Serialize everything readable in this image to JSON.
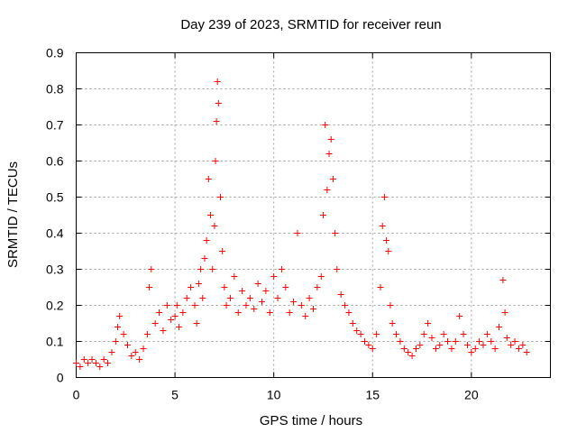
{
  "chart_data": {
    "type": "scatter",
    "title": "Day 239 of 2023, SRMTID for receiver reun",
    "xlabel": "GPS time / hours",
    "ylabel": "SRMTID / TECUs",
    "xlim": [
      0,
      24
    ],
    "ylim": [
      0,
      0.9
    ],
    "xticks": [
      0,
      5,
      10,
      15,
      20
    ],
    "xtick_labels": [
      "0",
      "5",
      "10",
      "15",
      "20"
    ],
    "yticks": [
      0,
      0.1,
      0.2,
      0.3,
      0.4,
      0.5,
      0.6,
      0.7,
      0.8,
      0.9
    ],
    "ytick_labels": [
      "0",
      "0.1",
      "0.2",
      "0.3",
      "0.4",
      "0.5",
      "0.6",
      "0.7",
      "0.8",
      "0.9"
    ],
    "grid": true,
    "marker": "+",
    "color": "#ff0000",
    "series": [
      {
        "name": "SRMTID",
        "points": [
          [
            0.0,
            0.04
          ],
          [
            0.2,
            0.03
          ],
          [
            0.4,
            0.05
          ],
          [
            0.6,
            0.04
          ],
          [
            0.8,
            0.05
          ],
          [
            1.0,
            0.04
          ],
          [
            1.2,
            0.03
          ],
          [
            1.4,
            0.05
          ],
          [
            1.6,
            0.04
          ],
          [
            1.8,
            0.07
          ],
          [
            2.0,
            0.1
          ],
          [
            2.1,
            0.14
          ],
          [
            2.2,
            0.17
          ],
          [
            2.4,
            0.12
          ],
          [
            2.6,
            0.09
          ],
          [
            2.8,
            0.06
          ],
          [
            3.0,
            0.07
          ],
          [
            3.2,
            0.05
          ],
          [
            3.4,
            0.08
          ],
          [
            3.6,
            0.12
          ],
          [
            3.7,
            0.25
          ],
          [
            3.8,
            0.3
          ],
          [
            4.0,
            0.15
          ],
          [
            4.2,
            0.18
          ],
          [
            4.4,
            0.13
          ],
          [
            4.6,
            0.2
          ],
          [
            4.8,
            0.16
          ],
          [
            5.0,
            0.17
          ],
          [
            5.1,
            0.2
          ],
          [
            5.2,
            0.14
          ],
          [
            5.4,
            0.18
          ],
          [
            5.6,
            0.22
          ],
          [
            5.8,
            0.25
          ],
          [
            6.0,
            0.2
          ],
          [
            6.1,
            0.15
          ],
          [
            6.2,
            0.26
          ],
          [
            6.3,
            0.3
          ],
          [
            6.4,
            0.22
          ],
          [
            6.5,
            0.33
          ],
          [
            6.6,
            0.38
          ],
          [
            6.7,
            0.55
          ],
          [
            6.8,
            0.45
          ],
          [
            6.9,
            0.3
          ],
          [
            7.0,
            0.42
          ],
          [
            7.05,
            0.6
          ],
          [
            7.1,
            0.71
          ],
          [
            7.15,
            0.82
          ],
          [
            7.2,
            0.76
          ],
          [
            7.3,
            0.5
          ],
          [
            7.4,
            0.35
          ],
          [
            7.5,
            0.25
          ],
          [
            7.6,
            0.2
          ],
          [
            7.8,
            0.22
          ],
          [
            8.0,
            0.28
          ],
          [
            8.2,
            0.18
          ],
          [
            8.4,
            0.24
          ],
          [
            8.6,
            0.2
          ],
          [
            8.8,
            0.22
          ],
          [
            9.0,
            0.19
          ],
          [
            9.2,
            0.26
          ],
          [
            9.4,
            0.21
          ],
          [
            9.6,
            0.24
          ],
          [
            9.8,
            0.18
          ],
          [
            10.0,
            0.28
          ],
          [
            10.2,
            0.22
          ],
          [
            10.4,
            0.3
          ],
          [
            10.6,
            0.25
          ],
          [
            10.8,
            0.18
          ],
          [
            11.0,
            0.21
          ],
          [
            11.2,
            0.4
          ],
          [
            11.4,
            0.2
          ],
          [
            11.6,
            0.17
          ],
          [
            11.8,
            0.22
          ],
          [
            12.0,
            0.19
          ],
          [
            12.2,
            0.25
          ],
          [
            12.4,
            0.28
          ],
          [
            12.5,
            0.45
          ],
          [
            12.6,
            0.7
          ],
          [
            12.7,
            0.52
          ],
          [
            12.8,
            0.62
          ],
          [
            12.9,
            0.66
          ],
          [
            13.0,
            0.55
          ],
          [
            13.1,
            0.4
          ],
          [
            13.2,
            0.3
          ],
          [
            13.4,
            0.23
          ],
          [
            13.6,
            0.2
          ],
          [
            13.8,
            0.18
          ],
          [
            14.0,
            0.15
          ],
          [
            14.2,
            0.13
          ],
          [
            14.4,
            0.12
          ],
          [
            14.6,
            0.1
          ],
          [
            14.8,
            0.09
          ],
          [
            15.0,
            0.08
          ],
          [
            15.2,
            0.12
          ],
          [
            15.4,
            0.25
          ],
          [
            15.5,
            0.42
          ],
          [
            15.6,
            0.5
          ],
          [
            15.7,
            0.38
          ],
          [
            15.8,
            0.35
          ],
          [
            15.9,
            0.2
          ],
          [
            16.0,
            0.15
          ],
          [
            16.2,
            0.12
          ],
          [
            16.4,
            0.1
          ],
          [
            16.6,
            0.08
          ],
          [
            16.8,
            0.07
          ],
          [
            17.0,
            0.06
          ],
          [
            17.2,
            0.08
          ],
          [
            17.4,
            0.09
          ],
          [
            17.6,
            0.12
          ],
          [
            17.8,
            0.15
          ],
          [
            18.0,
            0.11
          ],
          [
            18.2,
            0.08
          ],
          [
            18.4,
            0.09
          ],
          [
            18.6,
            0.12
          ],
          [
            18.8,
            0.1
          ],
          [
            19.0,
            0.08
          ],
          [
            19.2,
            0.1
          ],
          [
            19.4,
            0.17
          ],
          [
            19.6,
            0.12
          ],
          [
            19.8,
            0.09
          ],
          [
            20.0,
            0.07
          ],
          [
            20.2,
            0.08
          ],
          [
            20.4,
            0.1
          ],
          [
            20.6,
            0.09
          ],
          [
            20.8,
            0.12
          ],
          [
            21.0,
            0.1
          ],
          [
            21.2,
            0.08
          ],
          [
            21.4,
            0.14
          ],
          [
            21.6,
            0.27
          ],
          [
            21.7,
            0.18
          ],
          [
            21.8,
            0.11
          ],
          [
            22.0,
            0.09
          ],
          [
            22.2,
            0.1
          ],
          [
            22.4,
            0.08
          ],
          [
            22.6,
            0.09
          ],
          [
            22.8,
            0.07
          ]
        ]
      }
    ]
  }
}
